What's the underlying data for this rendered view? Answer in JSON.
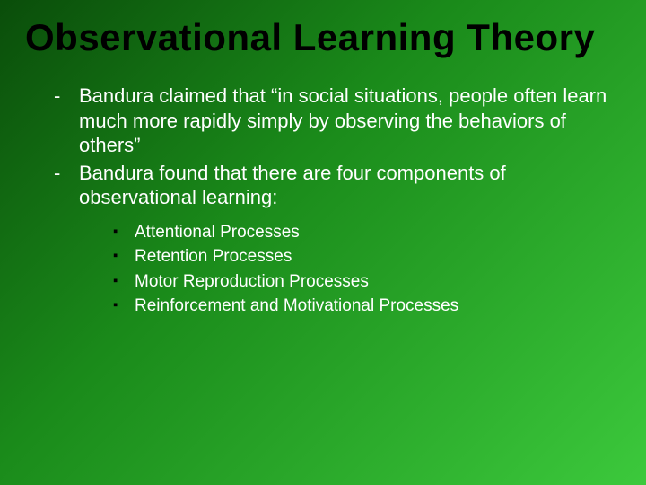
{
  "slide": {
    "title": "Observational Learning Theory",
    "title_color": "#000000",
    "title_fontsize": 42,
    "body_color": "#ffffff",
    "body_fontsize": 22,
    "sub_bullet_color": "#000000",
    "sub_fontsize": 19,
    "background_gradient": [
      "#0a4d0a",
      "#1a8a1a",
      "#3cc93c"
    ],
    "main_items": [
      "Bandura claimed that “in social situations, people often learn much more rapidly simply by observing the behaviors of others”",
      "Bandura found that there are four components of observational learning:"
    ],
    "sub_items": [
      "Attentional Processes",
      "Retention Processes",
      "Motor Reproduction Processes",
      "Reinforcement and Motivational Processes"
    ]
  }
}
